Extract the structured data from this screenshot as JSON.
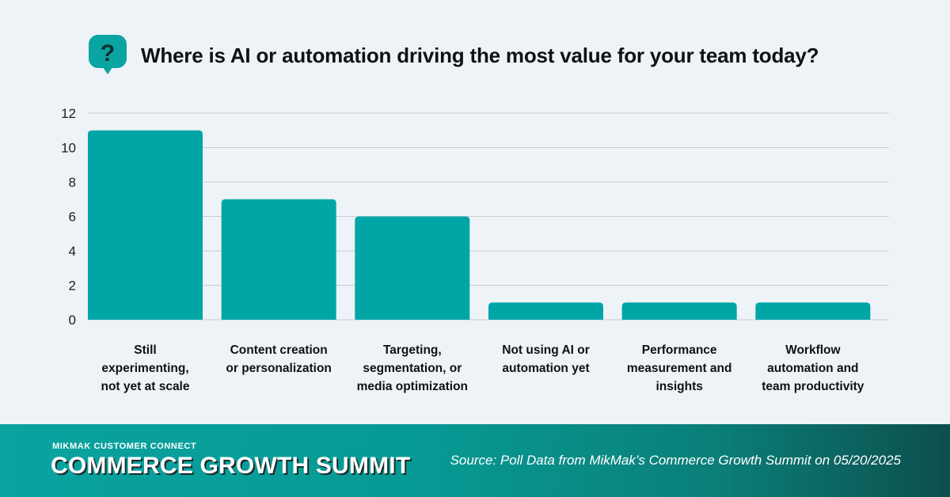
{
  "header": {
    "title": "Where is AI or automation driving the most value for your team today?",
    "icon": "question-bubble-icon"
  },
  "colors": {
    "background": "#eef3f8",
    "bar": "#00a6a6",
    "grid": "#c9ced4",
    "footer_start": "#0aa39f",
    "footer_end": "#0c4f4d"
  },
  "chart_data": {
    "type": "bar",
    "title": "Where is AI or automation driving the most value for your team today?",
    "categories": [
      [
        "Still",
        "experimenting,",
        "not yet at scale"
      ],
      [
        "Content creation",
        "or personalization"
      ],
      [
        "Targeting,",
        "segmentation, or",
        "media optimization"
      ],
      [
        "Not using AI or",
        "automation yet"
      ],
      [
        "Performance",
        "measurement and",
        "insights"
      ],
      [
        "Workflow",
        "automation and",
        "team productivity"
      ]
    ],
    "values": [
      11,
      7,
      6,
      1,
      1,
      1
    ],
    "yticks": [
      0,
      2,
      4,
      6,
      8,
      10,
      12
    ],
    "ylim": [
      0,
      12
    ],
    "grid": true,
    "legend": "none"
  },
  "footer": {
    "eyebrow": "MIKMAK CUSTOMER CONNECT",
    "title": "COMMERCE GROWTH SUMMIT",
    "source": "Source: Poll Data from MikMak’s Commerce Growth Summit on 05/20/2025"
  }
}
